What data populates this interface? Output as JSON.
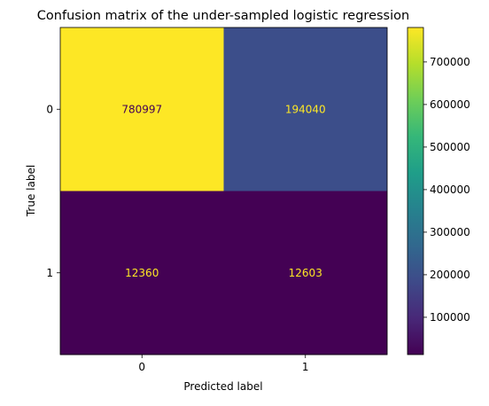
{
  "chart_data": {
    "type": "heatmap",
    "title": "Confusion matrix of the under-sampled logistic regression",
    "xlabel": "Predicted label",
    "ylabel": "True label",
    "x_categories": [
      "0",
      "1"
    ],
    "y_categories": [
      "0",
      "1"
    ],
    "values": [
      [
        780997,
        194040
      ],
      [
        12360,
        12603
      ]
    ],
    "colormap": "viridis",
    "colorbar": {
      "min": 12360,
      "max": 780997,
      "ticks": [
        100000,
        200000,
        300000,
        400000,
        500000,
        600000,
        700000
      ],
      "tick_labels": [
        "100000",
        "200000",
        "300000",
        "400000",
        "500000",
        "600000",
        "700000"
      ]
    },
    "text_colors": {
      "on_light": "#440154",
      "on_dark": "#fde725"
    },
    "grid": false
  }
}
